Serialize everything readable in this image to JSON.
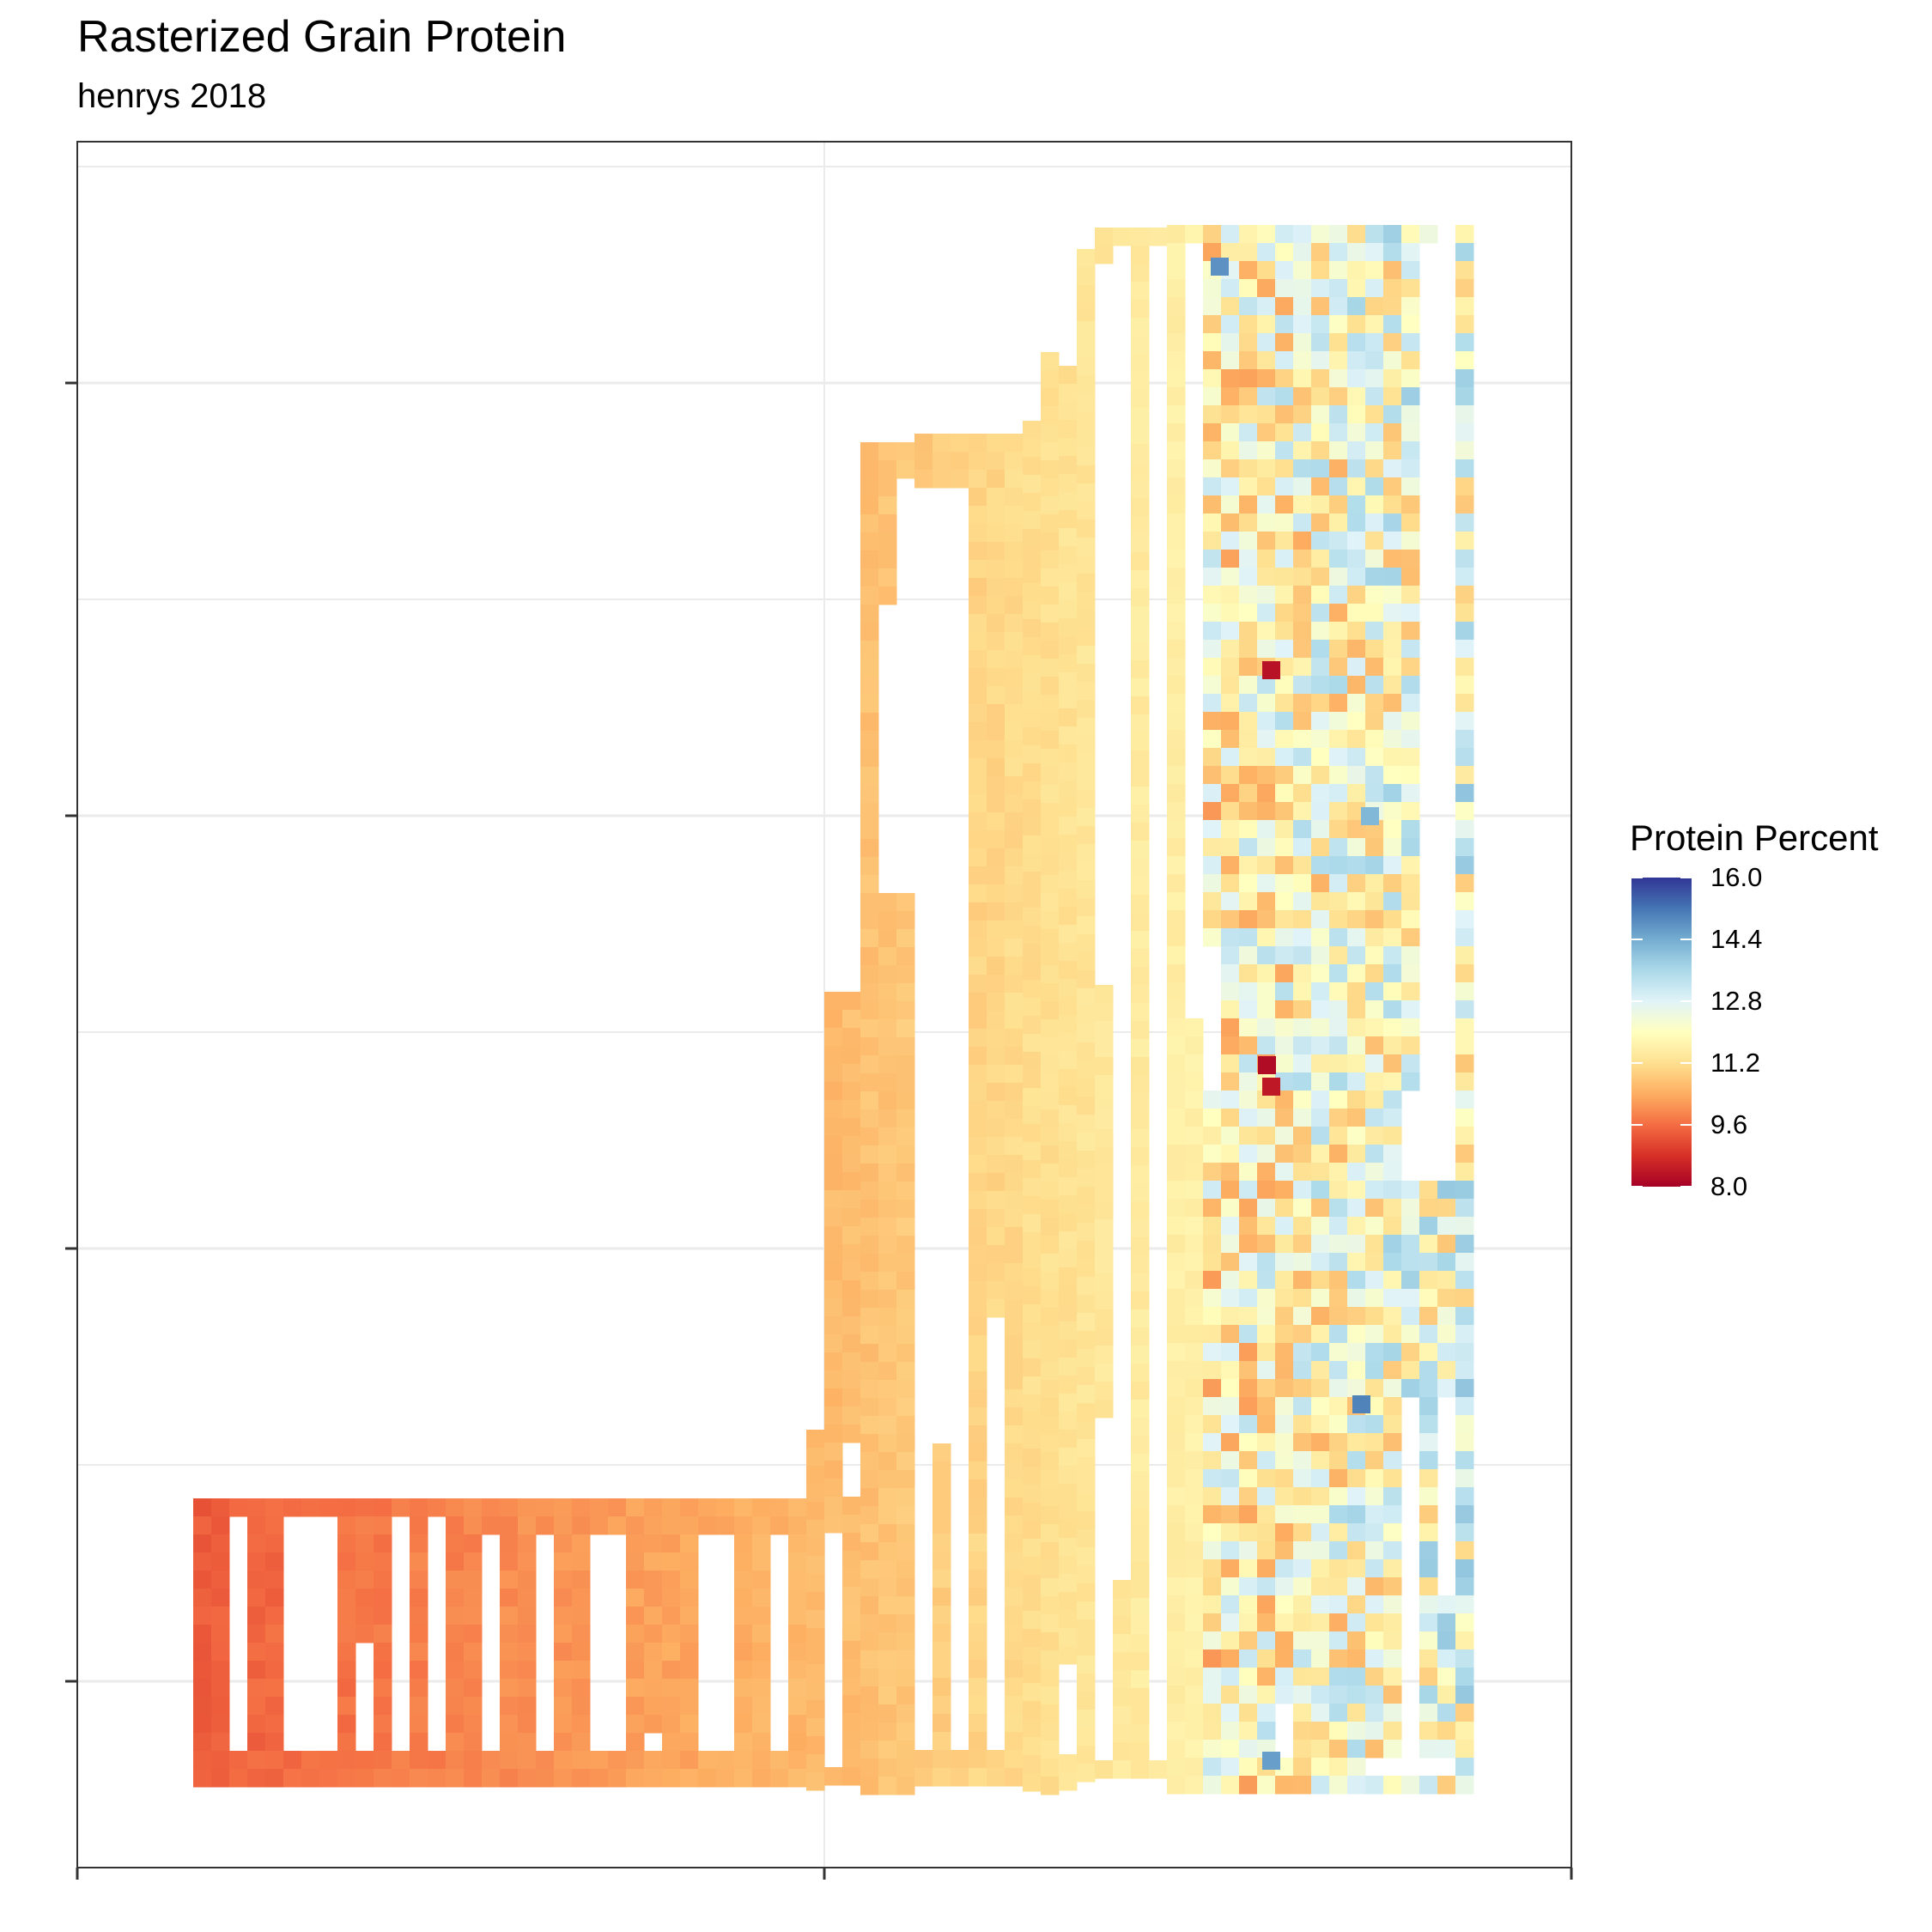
{
  "chart_data": {
    "type": "heatmap",
    "title": "Rasterized Grain Protein",
    "subtitle": "henrys 2018",
    "xlabel": "",
    "ylabel": "",
    "x_tick_labels": [],
    "y_tick_labels": [],
    "grid": true,
    "legend_position": "right",
    "legend": {
      "title": "Protein Percent",
      "min": 8.0,
      "max": 16.0,
      "breaks": [
        "16.0",
        "14.4",
        "12.8",
        "11.2",
        "9.6",
        "8.0"
      ],
      "palette": "RdYlBu",
      "colors": [
        "#a50026",
        "#d73027",
        "#f46d43",
        "#fdae61",
        "#fee090",
        "#ffffbf",
        "#e0f3f8",
        "#abd9e9",
        "#74add1",
        "#4575b4",
        "#313695"
      ]
    },
    "value_trend": {
      "west_edge_protein": 9.4,
      "middle_protein": 10.6,
      "east_edge_protein": 12.4,
      "observed_min": 8.2,
      "observed_max": 15.0
    },
    "hotspots": [
      {
        "label": "low",
        "value": 8.3
      },
      {
        "label": "low",
        "value": 8.2
      },
      {
        "label": "low",
        "value": 8.4
      },
      {
        "label": "high",
        "value": 14.6
      },
      {
        "label": "high",
        "value": 14.8
      },
      {
        "label": "high",
        "value": 15.0
      },
      {
        "label": "high",
        "value": 14.2
      }
    ]
  }
}
